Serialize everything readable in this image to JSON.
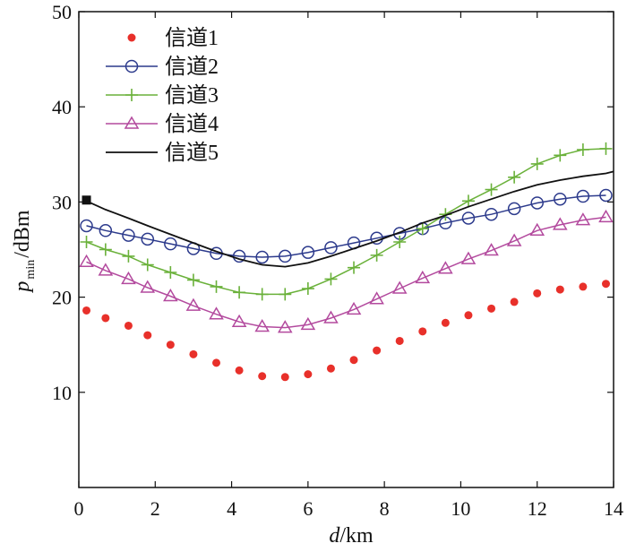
{
  "chart_data": {
    "type": "line",
    "xlabel_var": "d",
    "xlabel_unit": "/km",
    "ylabel_var": "p",
    "ylabel_sub": "min",
    "ylabel_unit": "/dBm",
    "xlim": [
      0,
      14
    ],
    "ylim": [
      0,
      50
    ],
    "xticks": [
      0,
      2,
      4,
      6,
      8,
      10,
      12,
      14
    ],
    "yticks": [
      10,
      20,
      30,
      40,
      50
    ],
    "grid": false,
    "legend_position": "top-left",
    "series": [
      {
        "name": "信道1",
        "color": "#e8302a",
        "marker": "dot",
        "line": false,
        "x": [
          0.2,
          0.7,
          1.3,
          1.8,
          2.4,
          3.0,
          3.6,
          4.2,
          4.8,
          5.4,
          6.0,
          6.6,
          7.2,
          7.8,
          8.4,
          9.0,
          9.6,
          10.2,
          10.8,
          11.4,
          12.0,
          12.6,
          13.2,
          13.8
        ],
        "y": [
          18.6,
          17.8,
          17.0,
          16.0,
          15.0,
          14.0,
          13.1,
          12.3,
          11.7,
          11.6,
          11.9,
          12.5,
          13.4,
          14.4,
          15.4,
          16.4,
          17.3,
          18.1,
          18.8,
          19.5,
          20.4,
          20.8,
          21.1,
          21.4
        ]
      },
      {
        "name": "信道2",
        "color": "#2c3a8c",
        "marker": "circle",
        "line": true,
        "x": [
          0.2,
          0.7,
          1.3,
          1.8,
          2.4,
          3.0,
          3.6,
          4.2,
          4.8,
          5.4,
          6.0,
          6.6,
          7.2,
          7.8,
          8.4,
          9.0,
          9.6,
          10.2,
          10.8,
          11.4,
          12.0,
          12.6,
          13.2,
          13.8
        ],
        "y": [
          27.5,
          27.0,
          26.5,
          26.1,
          25.6,
          25.1,
          24.6,
          24.3,
          24.2,
          24.3,
          24.7,
          25.2,
          25.7,
          26.2,
          26.7,
          27.2,
          27.8,
          28.3,
          28.7,
          29.3,
          29.9,
          30.3,
          30.6,
          30.7
        ]
      },
      {
        "name": "信道3",
        "color": "#6ab13a",
        "marker": "plus",
        "line": true,
        "x": [
          0.2,
          0.7,
          1.3,
          1.8,
          2.4,
          3.0,
          3.6,
          4.2,
          4.8,
          5.4,
          6.0,
          6.6,
          7.2,
          7.8,
          8.4,
          9.0,
          9.6,
          10.2,
          10.8,
          11.4,
          12.0,
          12.6,
          13.2,
          13.8
        ],
        "y": [
          25.8,
          25.0,
          24.3,
          23.4,
          22.6,
          21.8,
          21.1,
          20.5,
          20.3,
          20.3,
          20.9,
          21.9,
          23.1,
          24.4,
          25.8,
          27.2,
          28.7,
          30.1,
          31.3,
          32.6,
          34.0,
          34.9,
          35.5,
          35.6
        ]
      },
      {
        "name": "信道4",
        "color": "#b34a9e",
        "marker": "triangle",
        "line": true,
        "x": [
          0.2,
          0.7,
          1.3,
          1.8,
          2.4,
          3.0,
          3.6,
          4.2,
          4.8,
          5.4,
          6.0,
          6.6,
          7.2,
          7.8,
          8.4,
          9.0,
          9.6,
          10.2,
          10.8,
          11.4,
          12.0,
          12.6,
          13.2,
          13.8
        ],
        "y": [
          23.7,
          22.8,
          21.9,
          21.0,
          20.1,
          19.1,
          18.2,
          17.4,
          16.9,
          16.8,
          17.1,
          17.8,
          18.7,
          19.8,
          20.9,
          22.0,
          23.0,
          24.0,
          24.9,
          25.9,
          27.0,
          27.6,
          28.1,
          28.4
        ]
      },
      {
        "name": "信道5",
        "color": "#111111",
        "marker": "none",
        "line": true,
        "x": [
          0.2,
          0.7,
          1.3,
          1.8,
          2.4,
          3.0,
          3.6,
          4.2,
          4.8,
          5.4,
          6.0,
          6.6,
          7.2,
          7.8,
          8.4,
          9.0,
          9.6,
          10.2,
          10.8,
          11.4,
          12.0,
          12.6,
          13.2,
          13.8,
          14.0
        ],
        "y": [
          30.1,
          29.2,
          28.3,
          27.5,
          26.6,
          25.7,
          24.8,
          24.0,
          23.4,
          23.2,
          23.6,
          24.3,
          25.1,
          25.9,
          26.8,
          27.8,
          28.6,
          29.5,
          30.3,
          31.1,
          31.8,
          32.3,
          32.7,
          33.0,
          33.2
        ]
      }
    ],
    "annotation_point": {
      "x": 0.2,
      "y": 30.2,
      "color": "#111111"
    }
  }
}
